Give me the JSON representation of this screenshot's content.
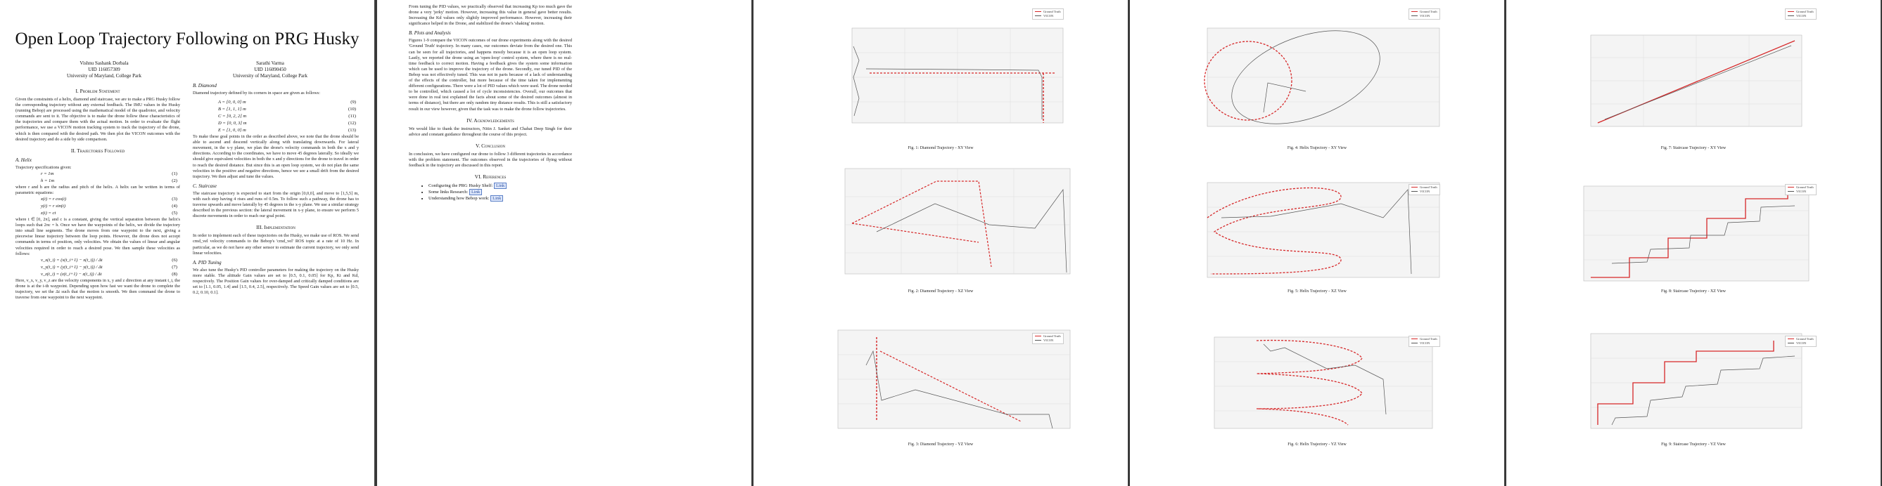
{
  "paper": {
    "title": "Open Loop Trajectory Following on PRG Husky",
    "authors": [
      {
        "name": "Vishnu Sashank Dorbala",
        "uid": "UID 116057309",
        "affil": "University of Maryland, College Park"
      },
      {
        "name": "Sarathi Varma",
        "uid": "UID 116090450",
        "affil": "University of Maryland, College Park"
      }
    ]
  },
  "page1": {
    "sec1": "I. Problem Statement",
    "sec1_text": "Given the constraints of a helix, diamond and staircase, we are to make a PRG Husky follow the corresponding trajectory without any external feedback. The IMU values in the Husky (running Bebop) are processed using the mathematical model of the quadrotor, and velocity commands are sent to it. The objective is to make the drone follow these characteristics of the trajectories and compare them with the actual motion. In order to evaluate the flight performance, we use a VICON motion tracking system to track the trajectory of the drone, which is then compared with the desired path. We then plot the VICON outcomes with the desired trajectory and do a side by side comparison.",
    "sec2": "II. Trajectories Followed",
    "subA": "A. Helix",
    "subA_text": "Trajectory specifications given:",
    "eq_helix": [
      {
        "lhs": "r = 1m",
        "num": "(1)"
      },
      {
        "lhs": "h = 1m",
        "num": "(2)"
      }
    ],
    "helix_text": "where r and h are the radius and pitch of the helix. A helix can be written in terms of parametric equations:",
    "eq_param": [
      {
        "lhs": "x(t) = r cos(t)",
        "num": "(3)"
      },
      {
        "lhs": "y(t) = r sin(t)",
        "num": "(4)"
      },
      {
        "lhs": "z(t) = ct",
        "num": "(5)"
      }
    ],
    "helix_text2": "where t ∈ [0, 2π], and c is a constant, giving the vertical separation between the helix's loops such that 2πc = h. Once we have the waypoints of the helix, we divide the trajectory into small line segments. The drone moves from one waypoint to the next, giving a piecewise linear trajectory between the loop points. However, the drone does not accept commands in terms of position, only velocities. We obtain the values of linear and angular velocities required in order to reach a desired pose. We then sample these velocities as follows:",
    "eq_vel": [
      {
        "lhs": "v_x(t_i) = (x(t_i+1) − x(t_i)) / Δt",
        "num": "(6)"
      },
      {
        "lhs": "v_y(t_i) = (y(t_i+1) − y(t_i)) / Δt",
        "num": "(7)"
      },
      {
        "lhs": "v_z(t_i) = (z(t_i+1) − z(t_i)) / Δt",
        "num": "(8)"
      }
    ],
    "vel_text": "Here, v_x, v_y, v_z are the velocity components in x, y and z direction at any instant t_i, the drone is at the i-th waypoint. Depending upon how fast we want the drone to complete the trajectory, we set the Δt such that the motion is smooth. We then command the drone to traverse from one waypoint to the next waypoint.",
    "subB": "B. Diamond",
    "subB_text": "Diamond trajectory defined by its corners in space are given as follows:",
    "eq_diamond": [
      {
        "lhs": "A = [0, 0, 0] m",
        "num": "(9)"
      },
      {
        "lhs": "B = [1, 1, 1] m",
        "num": "(10)"
      },
      {
        "lhs": "C = [0, 2, 2] m",
        "num": "(11)"
      },
      {
        "lhs": "D = [0, 0, 3] m",
        "num": "(12)"
      },
      {
        "lhs": "E = [1, 0, 0] m",
        "num": "(13)"
      }
    ],
    "diamond_text": "To make these goal points in the order as described above, we note that the drone should be able to ascend and descend vertically along with translating downwards. For lateral movement, in the x-y plane, we plan the drone's velocity commands in both the x and y directions. According to the coordinates, we have to move 45 degrees laterally. So ideally we should give equivalent velocities in both the x and y directions for the drone to travel in order to reach the desired distance. But since this is an open loop system, we do not plan the same velocities in the positive and negative directions, hence we see a small drift from the desired trajectory. We then adjust and tune the values.",
    "subC": "C. Staircase",
    "subC_text": "The staircase trajectory is expected to start from the origin [0,0,0], and move to [1,5,5] m, with each step having 4 rises and runs of 0.5m. To follow such a pathway, the drone has to traverse upwards and move laterally by 45 degrees in the x-y plane. We use a similar strategy described in the previous section: the lateral movement in x-y plane, to ensure we perform 5 discrete movements in order to reach our goal point.",
    "sec3": "III. Implementation",
    "sec3_text": "In order to implement each of these trajectories on the Husky, we make use of ROS. We send cmd_vel velocity commands to the Bebop's 'cmd_vel' ROS topic at a rate of 10 Hz. In particular, as we do not have any other sensor to estimate the current trajectory, we only send linear velocities.",
    "subPID": "A. PID Tuning",
    "pid_text": "We also tune the Husky's PID controller parameters for making the trajectory on the Husky more stable. The altitude Gain values are set to [0.5, 0.1, 0.05] for Kp, Ki and Kd, respectively. The Position Gain values for over-damped and critically damped conditions are set to [1.1, 0.05, 1.4] and [1.5, 0.4, 2.5], respectively. The Speed Gain values are set to [0.5, 0.2, 0.10, 0.1]."
  },
  "page2": {
    "intro": "From tuning the PID values, we practically observed that increasing Kp too much gave the drone a very 'jerky' motion. However, increasing this value in general gave better results. Increasing the Kd values only slightly improved performance. However, increasing their significance helped in the Drone, and stabilized the drone's 'shaking' motion.",
    "subB": "B. Plots and Analysis",
    "plots_text": "Figures 1-9 compare the VICON outcomes of our drone experiments along with the desired 'Ground Truth' trajectory. In many cases, our outcomes deviate from the desired one. This can be seen for all trajectories, and happens mostly because it is an open loop system. Lastly, we reported the drone using an 'open-loop' control system, where there is no real-time feedback to correct motion. Having a feedback gives the system some information which can be used to improve the trajectory of the drone. Secondly, our tuned PID of the Bebop was not effectively tuned. This was not in parts because of a lack of understanding of the effects of the controller, but more because of the time taken for implementing different configurations. There were a lot of PID values which were used. The drone needed to be controlled, which caused a lot of cycle inconsistencies. Overall, our outcomes that were done in real test explained the facts about some of the desired outcomes (almost in terms of distance), but there are only random tiny distance results. This is still a satisfactory result in our view however, given that the task was to make the drone follow trajectories.",
    "sec4": "IV. Acknowledgements",
    "ack_text": "We would like to thank the instructors, Nitin J. Sanket and Chahat Deep Singh for their advice and constant guidance throughout the course of this project.",
    "sec5": "V. Conclusion",
    "concl_text": "In conclusion, we have configured our drone to follow 3 different trajectories in accordance with the problem statement. The outcomes observed in the trajectories of flying without feedback in the trajectory are discussed in this report.",
    "sec6": "VI. References",
    "refs": [
      {
        "text": "Configuring the PRG Husky Shelf:",
        "link": "Link"
      },
      {
        "text": "Some links Research:",
        "link": "Link"
      },
      {
        "text": "Understanding how Bebop work:",
        "link": "Link"
      }
    ]
  },
  "figures": {
    "fig1": "Fig. 1: Diamond Trajectory - XY View",
    "fig2": "Fig. 2: Diamond Trajectory - XZ View",
    "fig3": "Fig. 3: Diamond Trajectory - YZ View",
    "fig4": "Fig. 4: Helix Trajectory - XY View",
    "fig5": "Fig. 5: Helix Trajectory - XZ View",
    "fig6": "Fig. 6: Helix Trajectory - YZ View",
    "fig7": "Fig. 7: Staircase Trajectory - XY View",
    "fig8": "Fig. 8: Staircase Trajectory - XZ View",
    "fig9": "Fig. 9: Staircase Trajectory - YZ View",
    "legend_a": "Ground Truth",
    "legend_b": "VICON"
  },
  "colors": {
    "truth": "#d62728",
    "vicon": "#555555",
    "link": "#2a4fa0"
  }
}
